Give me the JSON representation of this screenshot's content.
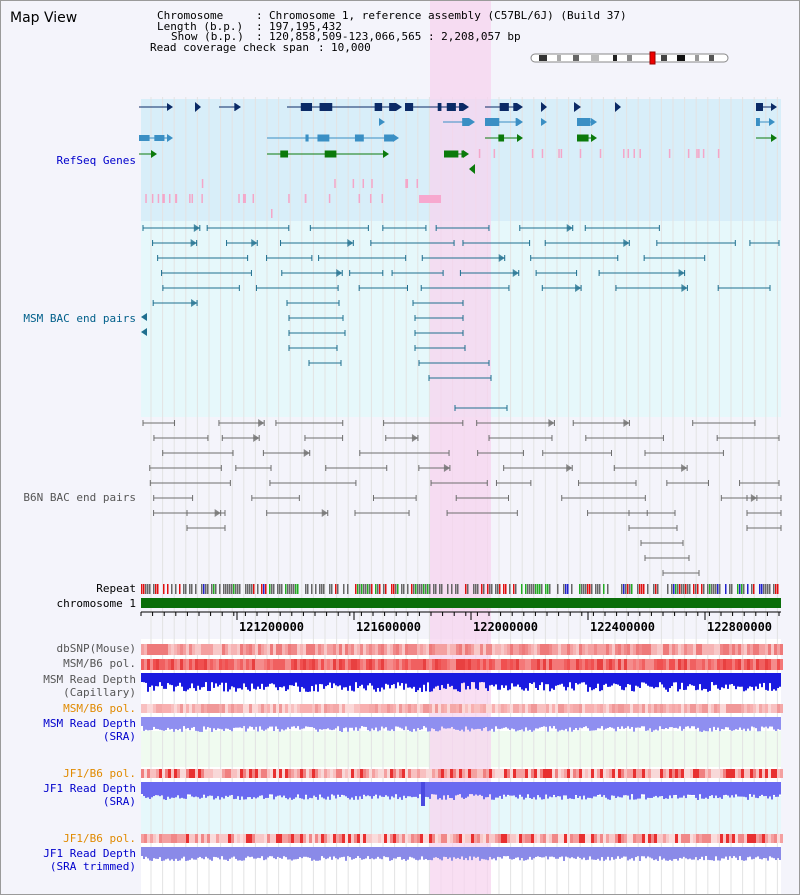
{
  "title": "Map View",
  "info": {
    "chromosome_label": "Chromosome",
    "chromosome_value": "Chromosome 1, reference assembly (C57BL/6J) (Build 37)",
    "length_label": "Length (b.p.)",
    "length_value": "197,195,432",
    "show_label": "Show (b.p.)",
    "show_value": "120,858,509-123,066,565 : 2,208,057 bp",
    "coverage_label": "Read coverage check span",
    "coverage_value": "10,000"
  },
  "tracks": {
    "refseq": "RefSeq Genes",
    "msm_bac": "MSM BAC end pairs",
    "b6n_bac": "B6N BAC end pairs",
    "repeat": "Repeat",
    "chromosome": "chromosome 1",
    "dbsnp": "dbSNP(Mouse)",
    "msm_b6_pol": "MSM/B6 pol.",
    "msm_depth_cap_1": "MSM Read Depth",
    "msm_depth_cap_2": "(Capillary)",
    "msm_b6_pol_2": "MSM/B6 pol.",
    "msm_depth_sra_1": "MSM Read Depth",
    "msm_depth_sra_2": "(SRA)",
    "jf1_b6_pol": "JF1/B6 pol.",
    "jf1_depth_sra_1": "JF1 Read Depth",
    "jf1_depth_sra_2": "(SRA)",
    "jf1_b6_pol_2": "JF1/B6 pol.",
    "jf1_depth_trim_1": "JF1 Read Depth",
    "jf1_depth_trim_2": "(SRA trimmed)"
  },
  "axis_ticks": [
    "121200000",
    "121600000",
    "122000000",
    "122400000",
    "122800000"
  ],
  "colors": {
    "refseq_bg": "#d8eef9",
    "msm_bg": "#e6f8fb",
    "b6n_bg": "#f4f4fb",
    "highlight": "#f7d4ef",
    "chromosome": "#0a6e0a",
    "msm_label": "#005f8a",
    "blue_label": "#0000cc",
    "orange_label": "#e08a00",
    "gene_dark": "#0b2a66",
    "gene_mid": "#3a8fc4",
    "gene_green": "#0b7a0b",
    "msm_pair": "#1f6f8f",
    "b6n_pair": "#6e6e6e"
  }
}
